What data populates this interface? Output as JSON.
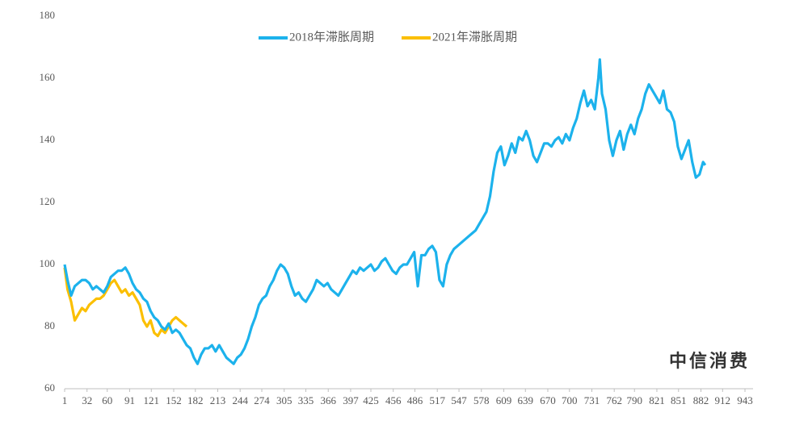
{
  "chart_data": {
    "type": "line",
    "watermark": "中信消费",
    "xlim": [
      1,
      943
    ],
    "xticks": [
      1,
      32,
      60,
      91,
      121,
      152,
      182,
      213,
      244,
      274,
      305,
      335,
      366,
      397,
      425,
      456,
      486,
      517,
      547,
      578,
      609,
      639,
      670,
      700,
      731,
      762,
      790,
      821,
      851,
      882,
      912,
      943
    ],
    "ylim": [
      60,
      180
    ],
    "yticks": [
      60,
      80,
      100,
      120,
      140,
      160,
      180
    ],
    "series": [
      {
        "name": "2018年滞胀周期",
        "color": "#1cb2ec",
        "x": [
          1,
          5,
          10,
          15,
          20,
          25,
          30,
          35,
          40,
          45,
          50,
          55,
          60,
          65,
          70,
          75,
          80,
          85,
          90,
          95,
          100,
          105,
          110,
          115,
          120,
          125,
          130,
          135,
          140,
          145,
          150,
          155,
          160,
          165,
          170,
          175,
          180,
          185,
          190,
          195,
          200,
          205,
          210,
          215,
          220,
          225,
          230,
          235,
          240,
          245,
          250,
          255,
          260,
          265,
          270,
          275,
          280,
          285,
          290,
          295,
          300,
          305,
          310,
          315,
          320,
          325,
          330,
          335,
          340,
          345,
          350,
          355,
          360,
          365,
          370,
          375,
          380,
          385,
          390,
          395,
          400,
          405,
          410,
          415,
          420,
          425,
          430,
          435,
          440,
          445,
          450,
          455,
          460,
          465,
          470,
          475,
          480,
          485,
          490,
          495,
          500,
          505,
          510,
          515,
          520,
          525,
          530,
          535,
          540,
          545,
          550,
          555,
          560,
          565,
          570,
          575,
          580,
          585,
          590,
          595,
          600,
          605,
          610,
          615,
          620,
          625,
          630,
          635,
          640,
          645,
          650,
          655,
          660,
          665,
          670,
          675,
          680,
          685,
          690,
          695,
          700,
          705,
          710,
          715,
          720,
          725,
          730,
          735,
          740,
          742,
          745,
          750,
          755,
          760,
          765,
          770,
          775,
          780,
          785,
          790,
          795,
          800,
          805,
          810,
          815,
          820,
          825,
          830,
          835,
          840,
          845,
          850,
          855,
          860,
          865,
          870,
          875,
          880,
          885,
          888
        ],
        "values": [
          100,
          95,
          90,
          93,
          94,
          95,
          95,
          94,
          92,
          93,
          92,
          91,
          93,
          96,
          97,
          98,
          98,
          99,
          97,
          94,
          92,
          91,
          89,
          88,
          85,
          83,
          82,
          80,
          79,
          81,
          78,
          79,
          78,
          76,
          74,
          73,
          70,
          68,
          71,
          73,
          73,
          74,
          72,
          74,
          72,
          70,
          69,
          68,
          70,
          71,
          73,
          76,
          80,
          83,
          87,
          89,
          90,
          93,
          95,
          98,
          100,
          99,
          97,
          93,
          90,
          91,
          89,
          88,
          90,
          92,
          95,
          94,
          93,
          94,
          92,
          91,
          90,
          92,
          94,
          96,
          98,
          97,
          99,
          98,
          99,
          100,
          98,
          99,
          101,
          102,
          100,
          98,
          97,
          99,
          100,
          100,
          102,
          104,
          93,
          103,
          103,
          105,
          106,
          104,
          95,
          93,
          100,
          103,
          105,
          106,
          107,
          108,
          109,
          110,
          111,
          113,
          115,
          117,
          122,
          130,
          136,
          138,
          132,
          135,
          139,
          136,
          141,
          140,
          143,
          140,
          135,
          133,
          136,
          139,
          139,
          138,
          140,
          141,
          139,
          142,
          140,
          144,
          147,
          152,
          156,
          151,
          153,
          150,
          160,
          166,
          155,
          150,
          140,
          135,
          140,
          143,
          137,
          142,
          145,
          142,
          147,
          150,
          155,
          158,
          156,
          154,
          152,
          156,
          150,
          149,
          146,
          138,
          134,
          137,
          140,
          133,
          128,
          129,
          133,
          132
        ]
      },
      {
        "name": "2021年滞胀周期",
        "color": "#fbbf00",
        "x": [
          1,
          5,
          10,
          15,
          20,
          25,
          30,
          35,
          40,
          45,
          50,
          55,
          60,
          65,
          70,
          75,
          80,
          85,
          90,
          95,
          100,
          105,
          110,
          115,
          120,
          125,
          130,
          135,
          140,
          145,
          150,
          155,
          160,
          165,
          170
        ],
        "values": [
          99,
          92,
          88,
          82,
          84,
          86,
          85,
          87,
          88,
          89,
          89,
          90,
          92,
          94,
          95,
          93,
          91,
          92,
          90,
          91,
          89,
          87,
          82,
          80,
          82,
          78,
          77,
          79,
          78,
          80,
          82,
          83,
          82,
          81,
          80
        ]
      }
    ]
  }
}
